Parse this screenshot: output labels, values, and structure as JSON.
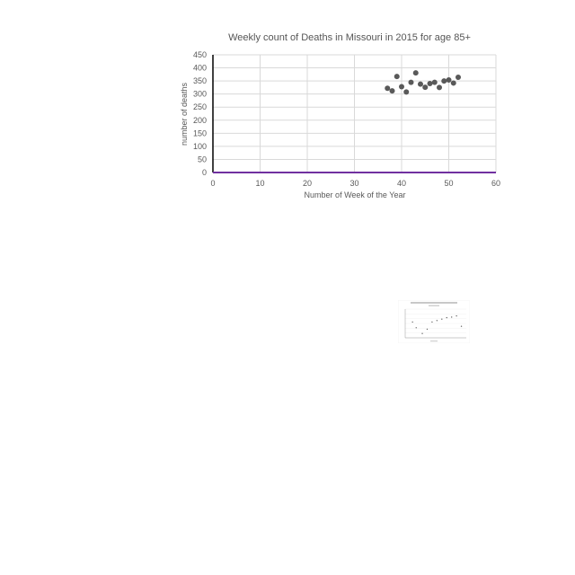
{
  "chart_data": {
    "type": "scatter",
    "title": "Weekly count of Deaths in Missouri in 2015 for age 85+",
    "xlabel": "Number of Week of the Year",
    "ylabel": "number of deaths",
    "xlim": [
      0,
      60
    ],
    "ylim": [
      0,
      450
    ],
    "x_ticks": [
      "0",
      "10",
      "20",
      "30",
      "40",
      "50",
      "60"
    ],
    "y_ticks": [
      "0",
      "50",
      "100",
      "150",
      "200",
      "250",
      "300",
      "350",
      "400",
      "450"
    ],
    "grid": true,
    "legend": "none",
    "point_color": "#595959",
    "axis_color": "#7030a0",
    "points": [
      {
        "x": 37,
        "y": 322
      },
      {
        "x": 38,
        "y": 312
      },
      {
        "x": 39,
        "y": 367
      },
      {
        "x": 40,
        "y": 328
      },
      {
        "x": 41,
        "y": 308
      },
      {
        "x": 42,
        "y": 345
      },
      {
        "x": 43,
        "y": 381
      },
      {
        "x": 44,
        "y": 338
      },
      {
        "x": 45,
        "y": 326
      },
      {
        "x": 46,
        "y": 340
      },
      {
        "x": 47,
        "y": 345
      },
      {
        "x": 48,
        "y": 325
      },
      {
        "x": 49,
        "y": 350
      },
      {
        "x": 50,
        "y": 354
      },
      {
        "x": 51,
        "y": 342
      },
      {
        "x": 52,
        "y": 364
      }
    ]
  },
  "thumbnail": {
    "point_color": "#666666",
    "points": [
      {
        "x": 0.12,
        "y": 0.55
      },
      {
        "x": 0.18,
        "y": 0.35
      },
      {
        "x": 0.28,
        "y": 0.15
      },
      {
        "x": 0.36,
        "y": 0.3
      },
      {
        "x": 0.44,
        "y": 0.55
      },
      {
        "x": 0.52,
        "y": 0.6
      },
      {
        "x": 0.6,
        "y": 0.65
      },
      {
        "x": 0.68,
        "y": 0.7
      },
      {
        "x": 0.76,
        "y": 0.72
      },
      {
        "x": 0.84,
        "y": 0.76
      },
      {
        "x": 0.92,
        "y": 0.4
      }
    ]
  }
}
